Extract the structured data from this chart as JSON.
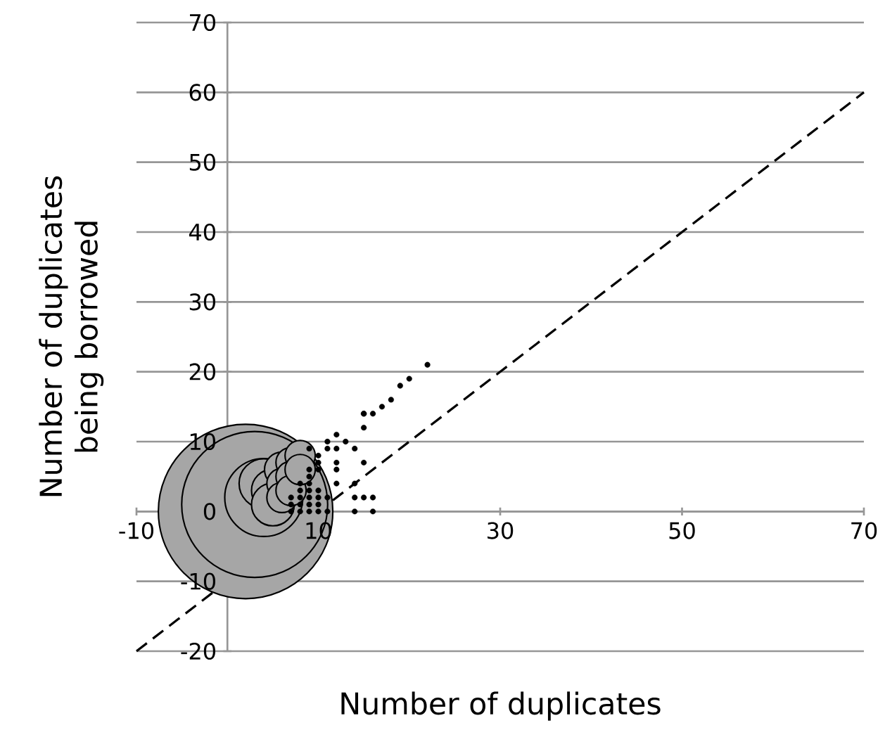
{
  "chart_data": {
    "type": "bubble",
    "xlabel": "Number of duplicates",
    "ylabel": "Number of duplicates being borrowed",
    "xlim": [
      -10,
      70
    ],
    "ylim": [
      -20,
      70
    ],
    "xticks": [
      -10,
      10,
      30,
      50,
      70
    ],
    "yticks": [
      -20,
      -10,
      0,
      10,
      20,
      30,
      40,
      50,
      60,
      70
    ],
    "grid": "y",
    "series": [
      {
        "color": "#a6a6a6",
        "x": [
          2,
          3,
          4,
          4,
          5,
          5,
          6,
          6,
          6,
          7,
          7,
          7,
          8,
          8
        ],
        "values": [
          0,
          1,
          2,
          4,
          3,
          1,
          6,
          4,
          2,
          7,
          5,
          3,
          8,
          6
        ],
        "sizes": [
          1,
          0.7,
          0.2,
          0.08,
          0.06,
          0.06,
          0.04,
          0.03,
          0.03,
          0.03,
          0.03,
          0.03,
          0.03,
          0.03
        ]
      },
      {
        "color": "#000000",
        "x": [
          7,
          7,
          7,
          8,
          8,
          8,
          8,
          8,
          9,
          9,
          9,
          9,
          9,
          9,
          9,
          9,
          10,
          10,
          10,
          10,
          10,
          10,
          10,
          11,
          11,
          11,
          11,
          12,
          12,
          12,
          12,
          12,
          13,
          14,
          14,
          14,
          14,
          15,
          15,
          15,
          15,
          15,
          16,
          16,
          16,
          17,
          18,
          19,
          20,
          22
        ],
        "values": [
          0,
          1,
          2,
          0,
          1,
          2,
          3,
          4,
          0,
          1,
          2,
          3,
          4,
          5,
          6,
          9,
          0,
          1,
          2,
          3,
          6,
          7,
          8,
          0,
          2,
          9,
          10,
          4,
          6,
          7,
          9,
          11,
          10,
          9,
          2,
          0,
          4,
          7,
          12,
          14,
          2,
          14,
          2,
          0,
          14,
          15,
          16,
          18,
          19,
          21
        ],
        "sizes": [
          0.001,
          0.001,
          0.001,
          0.001,
          0.001,
          0.001,
          0.001,
          0.001,
          0.001,
          0.001,
          0.001,
          0.001,
          0.001,
          0.001,
          0.001,
          0.001,
          0.001,
          0.001,
          0.001,
          0.001,
          0.001,
          0.001,
          0.001,
          0.001,
          0.001,
          0.001,
          0.001,
          0.001,
          0.001,
          0.001,
          0.001,
          0.001,
          0.001,
          0.001,
          0.001,
          0.001,
          0.001,
          0.001,
          0.001,
          0.001,
          0.001,
          0.001,
          0.001,
          0.001,
          0.001,
          0.001,
          0.001,
          0.001,
          0.001,
          0.001
        ]
      },
      {
        "type": "line",
        "color": "#000000",
        "line_style": "dashed",
        "marker": "none",
        "x": [
          -10,
          70
        ],
        "values": [
          -20,
          60
        ]
      }
    ]
  }
}
